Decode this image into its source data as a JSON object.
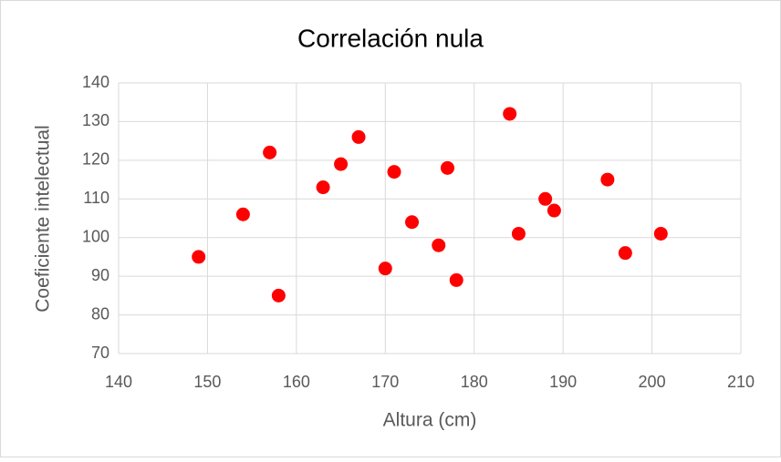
{
  "chart_data": {
    "type": "scatter",
    "title": "Correlación nula",
    "x_label": "Altura (cm)",
    "y_label": "Coeficiente intelectual",
    "series": [
      {
        "color": "#ff0000",
        "x": [
          149,
          154,
          157,
          158,
          163,
          165,
          167,
          170,
          171,
          173,
          176,
          177,
          178,
          184,
          185,
          188,
          189,
          195,
          197,
          201
        ],
        "values": [
          95,
          106,
          122,
          85,
          113,
          119,
          126,
          92,
          117,
          104,
          98,
          118,
          89,
          132,
          101,
          110,
          107,
          115,
          96,
          101
        ]
      }
    ],
    "xlim": [
      140,
      210
    ],
    "xticks": [
      140,
      150,
      160,
      170,
      180,
      190,
      200,
      210
    ],
    "ylim": [
      70,
      140
    ],
    "yticks": [
      70,
      80,
      90,
      100,
      110,
      120,
      130,
      140
    ],
    "grid": true
  }
}
